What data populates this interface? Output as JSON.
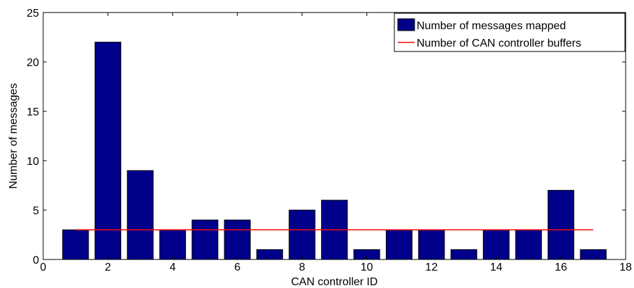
{
  "chart_data": {
    "type": "bar",
    "xlabel": "CAN controller ID",
    "ylabel": "Number of messages",
    "xlim": [
      0,
      18
    ],
    "ylim": [
      0,
      25
    ],
    "xticks": [
      0,
      2,
      4,
      6,
      8,
      10,
      12,
      14,
      16,
      18
    ],
    "yticks": [
      0,
      5,
      10,
      15,
      20,
      25
    ],
    "grid": false,
    "legend_position": "top-right",
    "series": [
      {
        "name": "Number of messages mapped",
        "kind": "bar",
        "color": "#00008b",
        "x": [
          1,
          2,
          3,
          4,
          5,
          6,
          7,
          8,
          9,
          10,
          11,
          12,
          13,
          14,
          15,
          16,
          17
        ],
        "values": [
          3,
          22,
          9,
          3,
          4,
          4,
          1,
          5,
          6,
          1,
          3,
          3,
          1,
          3,
          3,
          7,
          1
        ]
      },
      {
        "name": "Number of CAN controller buffers",
        "kind": "line",
        "color": "#ff0000",
        "x": [
          1,
          17
        ],
        "values": [
          3,
          3
        ]
      }
    ]
  }
}
